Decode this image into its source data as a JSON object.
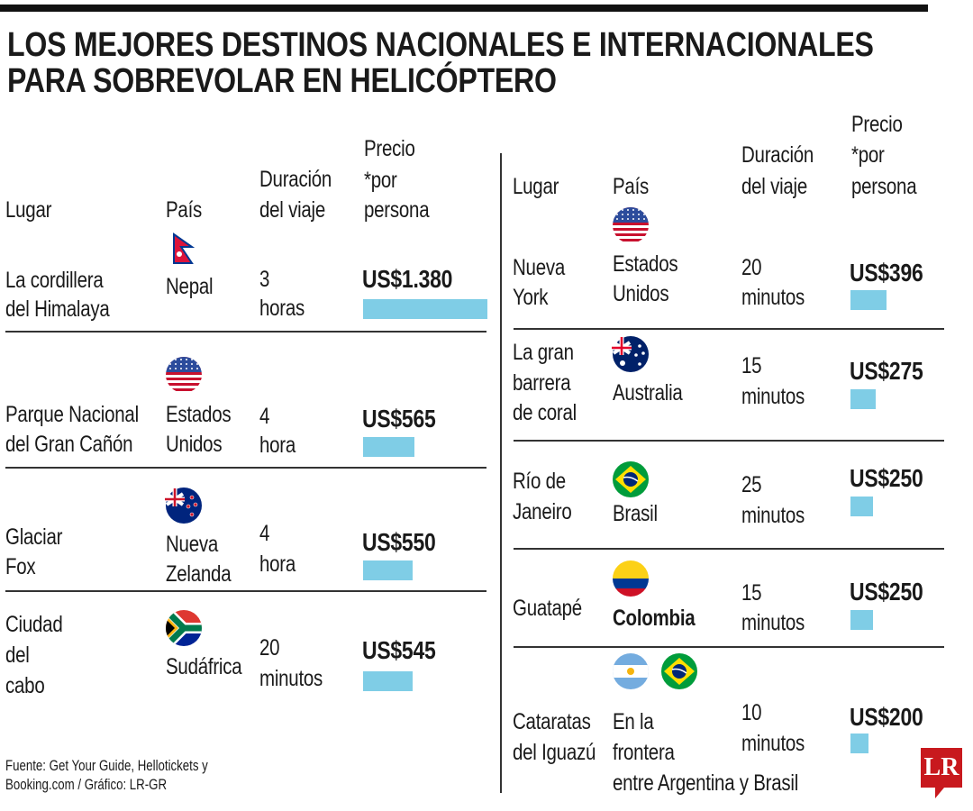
{
  "title_lines": [
    "LOS MEJORES DESTINOS NACIONALES E INTERNACIONALES",
    "PARA SOBREVOLAR EN HELICÓPTERO"
  ],
  "headers": {
    "lugar": "Lugar",
    "pais": "País",
    "duracion": [
      "Duración",
      "del viaje"
    ],
    "precio": [
      "Precio",
      "*por",
      "persona"
    ]
  },
  "colors": {
    "bar": "#7fcde6",
    "logo": "#c8191e"
  },
  "chart_data": {
    "type": "table",
    "columns": [
      "Lugar",
      "País",
      "Duración del viaje",
      "Precio *por persona"
    ],
    "rows": [
      {
        "lugar": [
          "La cordillera",
          "del Himalaya"
        ],
        "pais": [
          "Nepal"
        ],
        "flags": [
          "nepal"
        ],
        "duracion": [
          "3",
          "horas"
        ],
        "precio_label": "US$1.380",
        "precio": 1380
      },
      {
        "lugar": [
          "Parque Nacional",
          "del Gran Cañón"
        ],
        "pais": [
          "Estados",
          "Unidos"
        ],
        "flags": [
          "usa"
        ],
        "duracion": [
          "4",
          "hora"
        ],
        "precio_label": "US$565",
        "precio": 565
      },
      {
        "lugar": [
          "Glaciar",
          "Fox"
        ],
        "pais": [
          "Nueva",
          "Zelanda"
        ],
        "flags": [
          "new-zealand"
        ],
        "duracion": [
          "4",
          "hora"
        ],
        "precio_label": "US$550",
        "precio": 550
      },
      {
        "lugar": [
          "Ciudad",
          "del",
          "cabo"
        ],
        "pais": [
          "Sudáfrica"
        ],
        "flags": [
          "south-africa"
        ],
        "duracion": [
          "20",
          "minutos"
        ],
        "precio_label": "US$545",
        "precio": 545
      },
      {
        "lugar": [
          "Nueva",
          "York"
        ],
        "pais": [
          "Estados",
          "Unidos"
        ],
        "flags": [
          "usa"
        ],
        "duracion": [
          "20",
          "minutos"
        ],
        "precio_label": "US$396",
        "precio": 396
      },
      {
        "lugar": [
          "La gran",
          "barrera",
          "de coral"
        ],
        "pais": [
          "Australia"
        ],
        "flags": [
          "australia"
        ],
        "duracion": [
          "15",
          "minutos"
        ],
        "precio_label": "US$275",
        "precio": 275
      },
      {
        "lugar": [
          "Río de",
          "Janeiro"
        ],
        "pais": [
          "Brasil"
        ],
        "flags": [
          "brazil"
        ],
        "duracion": [
          "25",
          "minutos"
        ],
        "precio_label": "US$250",
        "precio": 250
      },
      {
        "lugar": [
          "Guatapé"
        ],
        "pais": [
          "Colombia"
        ],
        "pais_bold": true,
        "flags": [
          "colombia"
        ],
        "duracion": [
          "15",
          "minutos"
        ],
        "precio_label": "US$250",
        "precio": 250
      },
      {
        "lugar": [
          "Cataratas",
          "del Iguazú"
        ],
        "pais": [
          "En la",
          "frontera",
          "entre Argentina y Brasil"
        ],
        "flags": [
          "argentina",
          "brazil"
        ],
        "duracion": [
          "10",
          "minutos"
        ],
        "precio_label": "US$200",
        "precio": 200
      }
    ]
  },
  "source_lines": [
    "Fuente: Get Your Guide, Hellotickets y",
    "Booking.com / Gráfico: LR-GR"
  ],
  "logo": "LR"
}
